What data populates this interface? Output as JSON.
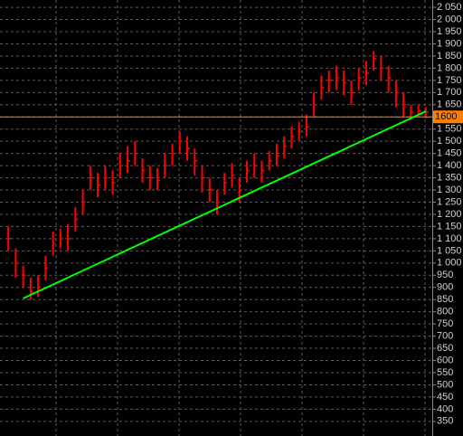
{
  "chart_data": {
    "type": "ohlc",
    "color": "#ff0000",
    "ylim": [
      290,
      2080
    ],
    "yticks": [
      350,
      400,
      450,
      500,
      550,
      600,
      650,
      700,
      750,
      800,
      850,
      900,
      950,
      {
        "value": 1000,
        "label": "1 000"
      },
      {
        "value": 1050,
        "label": "1 050"
      },
      {
        "value": 1100,
        "label": "1 100"
      },
      {
        "value": 1150,
        "label": "1 150"
      },
      {
        "value": 1200,
        "label": "1 200"
      },
      {
        "value": 1250,
        "label": "1 250"
      },
      {
        "value": 1300,
        "label": "1 300"
      },
      {
        "value": 1350,
        "label": "1 350"
      },
      {
        "value": 1400,
        "label": "1 400"
      },
      {
        "value": 1450,
        "label": "1 450"
      },
      {
        "value": 1500,
        "label": "1 500"
      },
      {
        "value": 1550,
        "label": "1 550"
      },
      {
        "value": 1600,
        "label": "1 600"
      },
      {
        "value": 1650,
        "label": "1 650"
      },
      {
        "value": 1700,
        "label": "1 700"
      },
      {
        "value": 1750,
        "label": "1 750"
      },
      {
        "value": 1800,
        "label": "1 800"
      },
      {
        "value": 1850,
        "label": "1 850"
      },
      {
        "value": 1900,
        "label": "1 900"
      },
      {
        "value": 1950,
        "label": "1 950"
      },
      {
        "value": 2000,
        "label": "2 000"
      },
      {
        "value": 2050,
        "label": "2 050"
      }
    ],
    "grid": true,
    "high": [
      1150,
      1060,
      990,
      940,
      950,
      1030,
      1130,
      1140,
      1160,
      1230,
      1300,
      1400,
      1370,
      1400,
      1380,
      1450,
      1480,
      1500,
      1430,
      1400,
      1390,
      1450,
      1490,
      1540,
      1520,
      1470,
      1400,
      1350,
      1300,
      1370,
      1410,
      1350,
      1420,
      1450,
      1420,
      1460,
      1490,
      1520,
      1560,
      1580,
      1610,
      1700,
      1770,
      1790,
      1810,
      1790,
      1750,
      1800,
      1830,
      1870,
      1850,
      1810,
      1750,
      1700,
      1650,
      1650,
      1640
    ],
    "low": [
      1050,
      940,
      900,
      850,
      860,
      930,
      1030,
      1060,
      1050,
      1130,
      1200,
      1300,
      1270,
      1300,
      1280,
      1350,
      1370,
      1400,
      1330,
      1300,
      1300,
      1350,
      1400,
      1450,
      1420,
      1360,
      1290,
      1250,
      1200,
      1280,
      1310,
      1250,
      1330,
      1350,
      1330,
      1380,
      1400,
      1430,
      1470,
      1500,
      1520,
      1600,
      1670,
      1700,
      1710,
      1690,
      1650,
      1710,
      1730,
      1790,
      1750,
      1700,
      1640,
      1600,
      1590,
      1600,
      1595
    ],
    "close": [
      1100,
      1000,
      950,
      880,
      900,
      980,
      1080,
      1100,
      1100,
      1180,
      1250,
      1350,
      1320,
      1350,
      1330,
      1400,
      1420,
      1450,
      1380,
      1350,
      1340,
      1400,
      1450,
      1500,
      1470,
      1420,
      1350,
      1300,
      1250,
      1330,
      1360,
      1300,
      1380,
      1400,
      1380,
      1420,
      1440,
      1480,
      1520,
      1540,
      1560,
      1650,
      1720,
      1750,
      1760,
      1740,
      1700,
      1760,
      1780,
      1840,
      1800,
      1760,
      1700,
      1650,
      1620,
      1625,
      1620
    ],
    "trendline": {
      "x": [
        2,
        56
      ],
      "values": [
        855,
        1623
      ],
      "color": "#00ff00"
    },
    "level": {
      "value": 1600,
      "color": "#ff8000"
    }
  }
}
